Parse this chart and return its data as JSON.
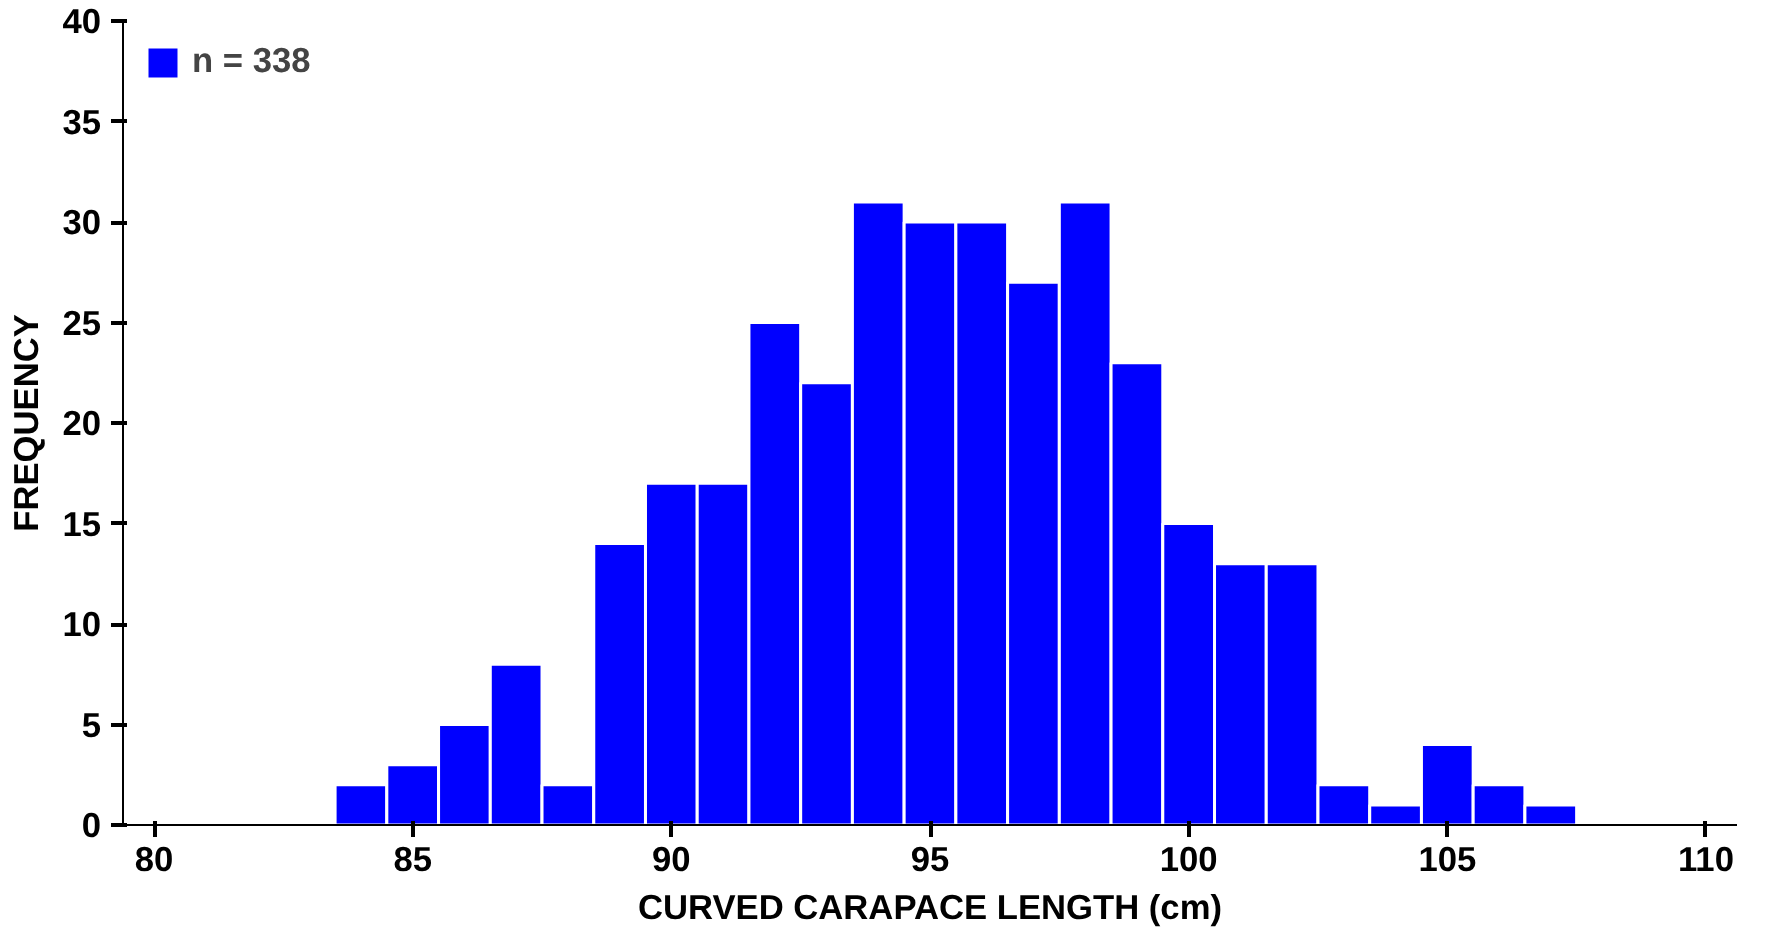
{
  "chart_data": {
    "type": "histogram",
    "xlabel": "CURVED CARAPACE LENGTH (cm)",
    "ylabel": "FREQUENCY",
    "bins": [
      83.5,
      84.5,
      85.5,
      86.5,
      87.5,
      88.5,
      89.5,
      90.5,
      91.5,
      92.5,
      93.5,
      94.5,
      95.5,
      96.5,
      97.5,
      98.5,
      99.5,
      100.5,
      101.5,
      102.5,
      103.5,
      104.5,
      105.5,
      106.5,
      107.5
    ],
    "series": [
      {
        "name": "n = 338",
        "color": "#0000ff",
        "values": [
          2,
          3,
          5,
          8,
          2,
          14,
          17,
          17,
          25,
          22,
          31,
          30,
          30,
          27,
          31,
          23,
          15,
          13,
          13,
          2,
          1,
          4,
          2,
          1
        ]
      }
    ],
    "xlim": [
      79.4,
      110.6
    ],
    "ylim": [
      0,
      40
    ],
    "xticks": [
      80,
      85,
      90,
      95,
      100,
      105,
      110
    ],
    "yticks": [
      0,
      5,
      10,
      15,
      20,
      25,
      30,
      35,
      40
    ],
    "grid": false,
    "legend": "top left"
  }
}
